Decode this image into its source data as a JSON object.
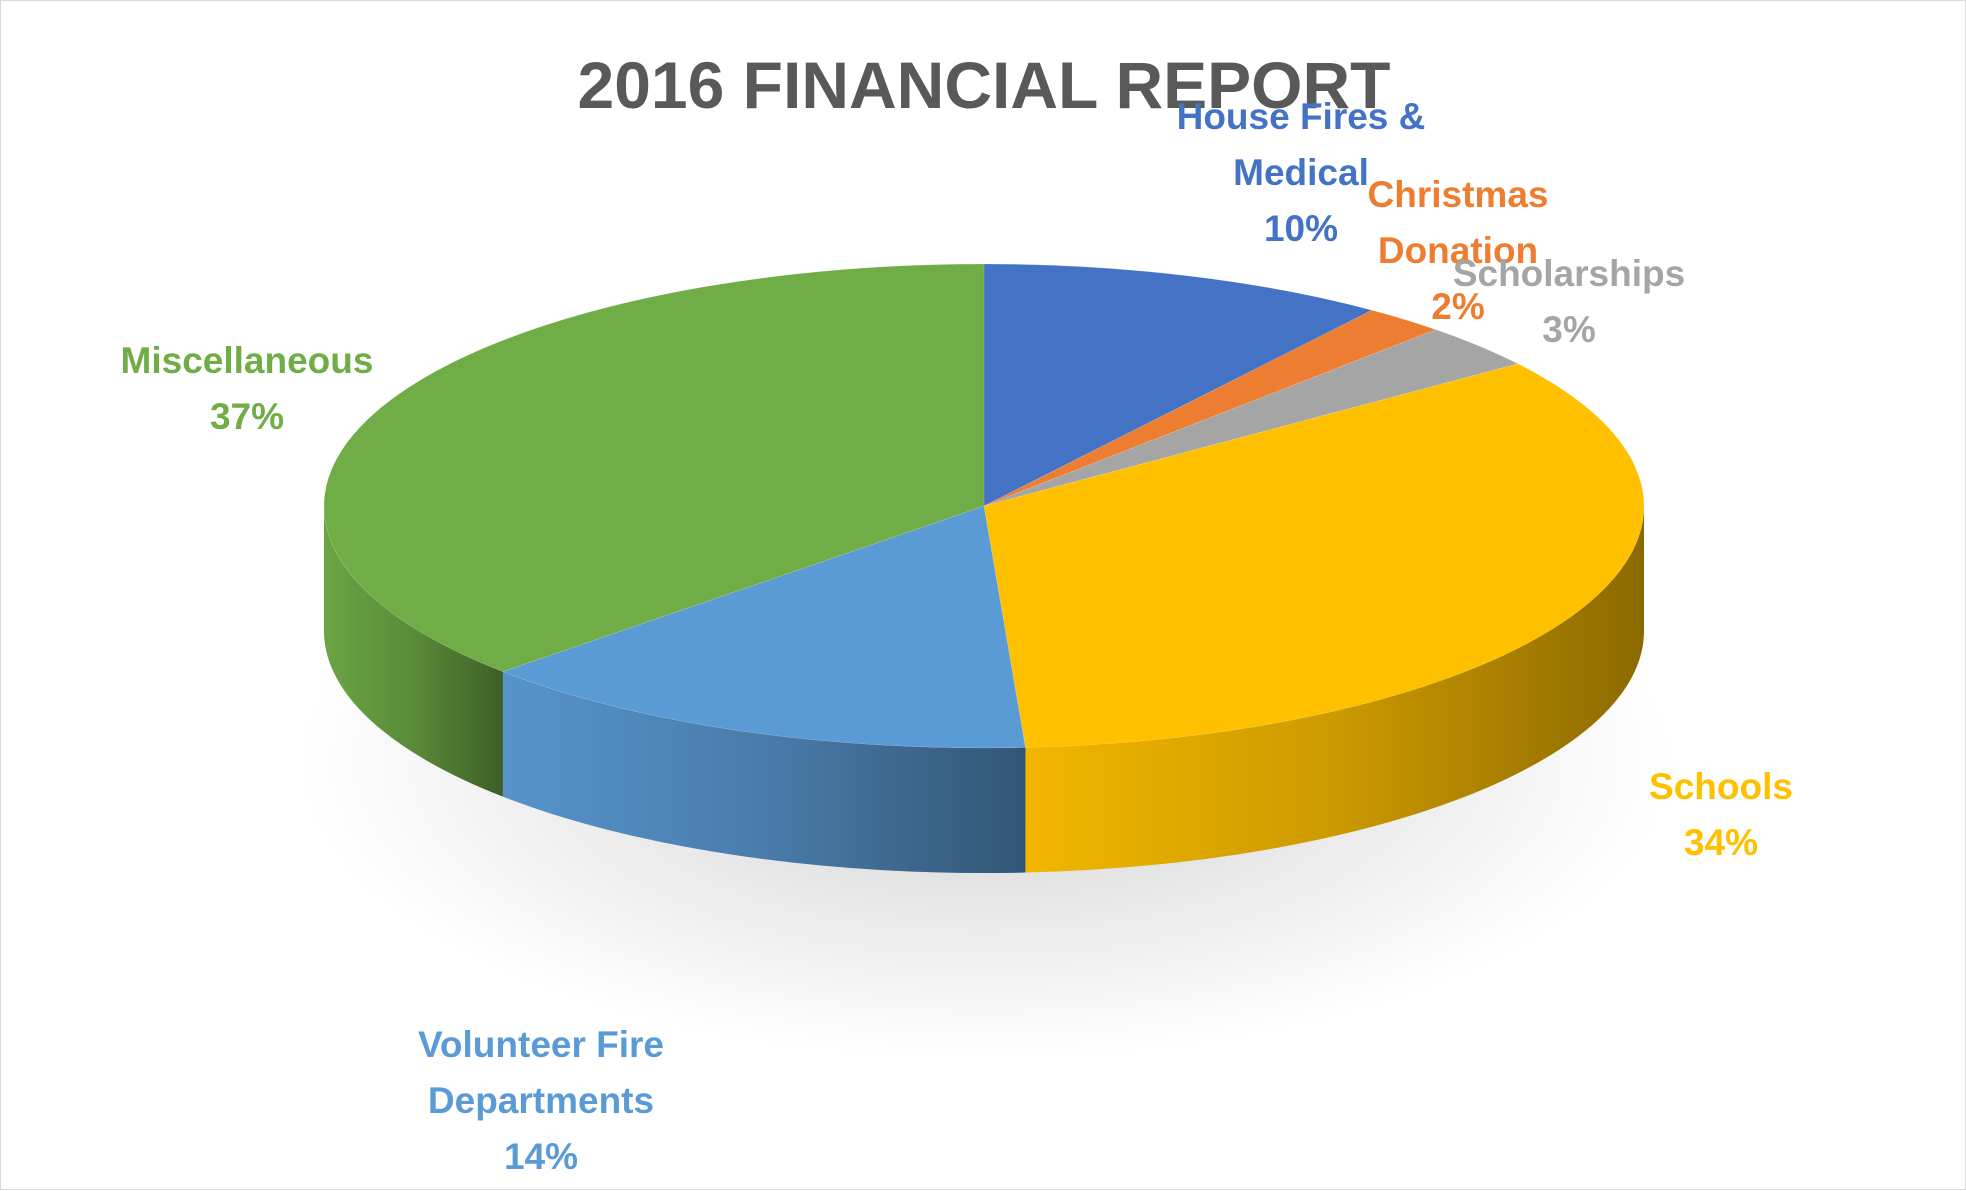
{
  "chart_data": {
    "type": "pie",
    "title": "2016 FINANCIAL REPORT",
    "slices": [
      {
        "label": "House Fires & Medical",
        "label_lines": [
          "House Fires &",
          "Medical"
        ],
        "pct_text": "10%",
        "value": 10,
        "color": "#4472C4"
      },
      {
        "label": "Christmas Donation",
        "label_lines": [
          "Christmas",
          "Donation"
        ],
        "pct_text": "2%",
        "value": 2,
        "color": "#ED7D31"
      },
      {
        "label": "Scholarships",
        "label_lines": [
          "Scholarships"
        ],
        "pct_text": "3%",
        "value": 3,
        "color": "#A5A5A5"
      },
      {
        "label": "Schools",
        "label_lines": [
          "Schools"
        ],
        "pct_text": "34%",
        "value": 34,
        "color": "#FFC000"
      },
      {
        "label": "Volunteer Fire Departments",
        "label_lines": [
          "Volunteer Fire",
          "Departments"
        ],
        "pct_text": "14%",
        "value": 14,
        "color": "#5B9BD5"
      },
      {
        "label": "Miscellaneous",
        "label_lines": [
          "Miscellaneous"
        ],
        "pct_text": "37%",
        "value": 37,
        "color": "#70AD47"
      }
    ],
    "legend": "none",
    "style": "3d"
  }
}
